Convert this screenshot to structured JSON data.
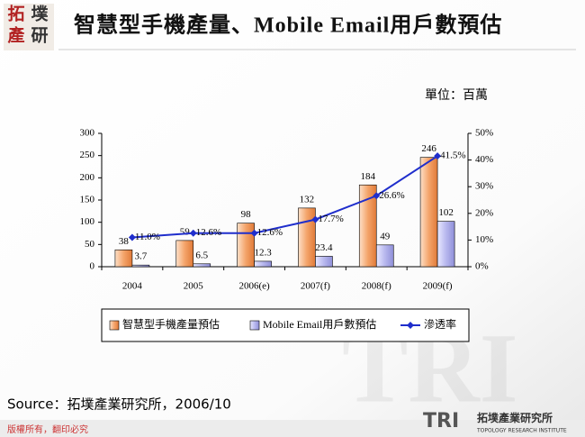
{
  "header": {
    "logo": [
      "拓",
      "墣",
      "產",
      "研"
    ],
    "unit": "單位：百萬"
  },
  "chart_data": {
    "type": "bar",
    "title": "智慧型手機產量、Mobile Email用戶數預估",
    "categories": [
      "2004",
      "2005",
      "2006(e)",
      "2007(f)",
      "2008(f)",
      "2009(f)"
    ],
    "series": [
      {
        "name": "智慧型手機產量預估",
        "color": "#f4a46a",
        "values": [
          38,
          59,
          98,
          132,
          184,
          246
        ]
      },
      {
        "name": "Mobile Email用戶數預估",
        "color": "#b8b8ee",
        "values": [
          3.7,
          6.5,
          12.3,
          23.4,
          49,
          102
        ]
      },
      {
        "name": "滲透率",
        "type": "line",
        "axis": "y2",
        "color": "#1f2ecc",
        "values": [
          11.0,
          12.6,
          12.6,
          17.7,
          26.6,
          41.5
        ],
        "value_labels": [
          "11.0%",
          "12.6%",
          "12.6%",
          "17.7%",
          "26.6%",
          "41.5%"
        ]
      }
    ],
    "ylim": [
      0,
      300
    ],
    "yticks": [
      0,
      50,
      100,
      150,
      200,
      250,
      300
    ],
    "y2lim": [
      0,
      50
    ],
    "y2ticks": [
      {
        "value": 0,
        "label": "0%"
      },
      {
        "value": 10,
        "label": "10%"
      },
      {
        "value": 20,
        "label": "20%"
      },
      {
        "value": 30,
        "label": "30%"
      },
      {
        "value": 40,
        "label": "40%"
      },
      {
        "value": 50,
        "label": "50%"
      }
    ],
    "legend": "bottom",
    "grid": false
  },
  "footer": {
    "source": "Source：拓墣產業研究所，2006/10",
    "copyright": "版權所有，翻印必究",
    "brand": "TRI",
    "brand_name": "拓墣產業研究所",
    "brand_en": "TOPOLOGY RESEARCH INSTITUTE"
  }
}
